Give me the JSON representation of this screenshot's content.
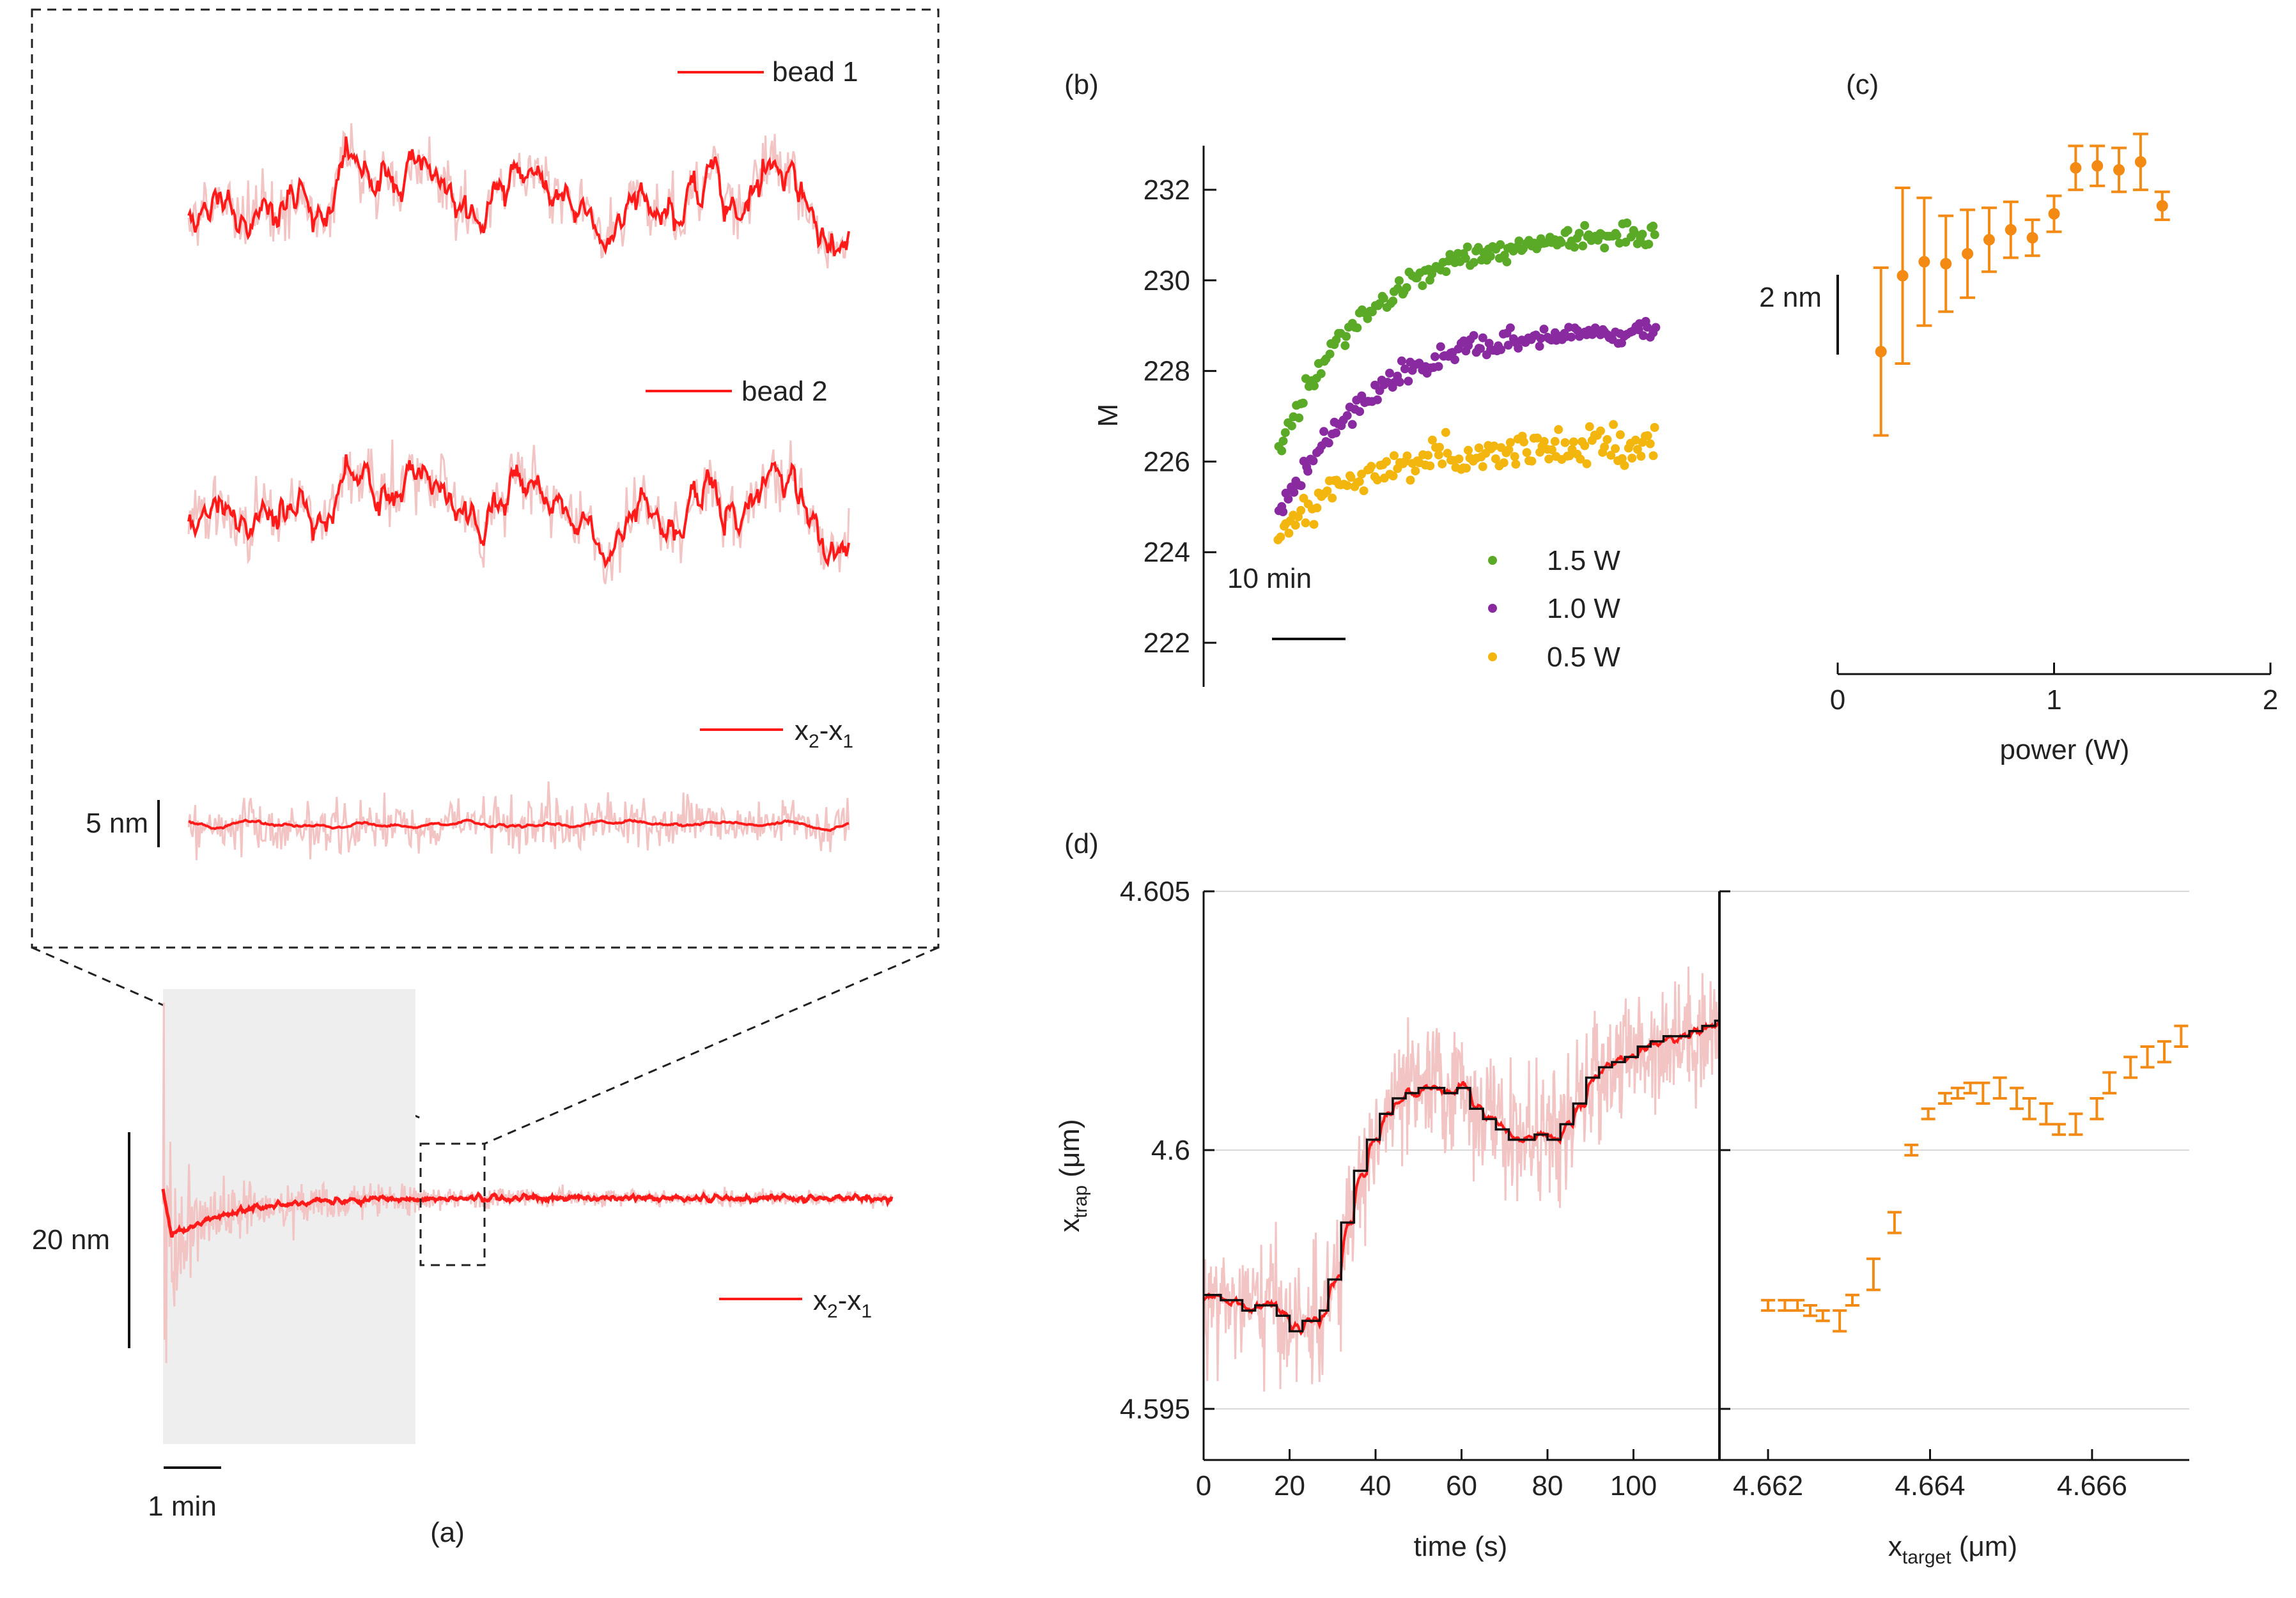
{
  "colors": {
    "trace": "#ff1a1a",
    "trace_raw": "#f2c4c4",
    "green": "#5aaa28",
    "purple": "#8a2aa0",
    "yellow": "#f3b60e",
    "orange": "#f28a14",
    "step": "#111111",
    "shade": "#eeeeee",
    "grid": "#d9d9d9",
    "axis": "#111111"
  },
  "chart_data": [
    {
      "panel": "(a)",
      "type": "line",
      "inset": {
        "traces": [
          {
            "name": "bead 1"
          },
          {
            "name": "bead 2"
          },
          {
            "name": "x_2-x_1",
            "display": [
              "x",
              "2",
              "-x",
              "1"
            ]
          }
        ],
        "scale_bar": "5 nm"
      },
      "main": {
        "series_label": {
          "name": "x_2-x_1",
          "display": [
            "x",
            "2",
            "-x",
            "1"
          ]
        },
        "y_scale_bar": "20 nm",
        "x_scale_bar": "1 min",
        "highlighted_region": "transient"
      }
    },
    {
      "panel": "(b)",
      "type": "scatter",
      "ylabel": "M",
      "ylim": [
        221,
        233
      ],
      "yticks": [
        "222",
        "224",
        "226",
        "228",
        "230",
        "232"
      ],
      "time_scale_bar": "10 min",
      "series": [
        {
          "name": "1.5 W",
          "start": 226.3,
          "end": 231.0,
          "noise": 0.28,
          "color_key": "green"
        },
        {
          "name": "1.0 W",
          "start": 224.8,
          "end": 228.9,
          "noise": 0.25,
          "color_key": "purple"
        },
        {
          "name": "0.5 W",
          "start": 224.3,
          "end": 226.4,
          "noise": 0.42,
          "color_key": "yellow"
        }
      ]
    },
    {
      "panel": "(c)",
      "type": "scatter",
      "xlabel": "power (W)",
      "xlim": [
        0,
        2
      ],
      "xticks": [
        "0",
        "1",
        "2"
      ],
      "y_scale_bar": "2 nm",
      "x": [
        0.2,
        0.3,
        0.4,
        0.5,
        0.6,
        0.7,
        0.8,
        0.9,
        1.0,
        1.1,
        1.2,
        1.3,
        1.4,
        1.5
      ],
      "y": [
        -4.9,
        -3.0,
        -2.65,
        -2.7,
        -2.45,
        -2.1,
        -1.85,
        -2.05,
        -1.45,
        -0.3,
        -0.25,
        -0.35,
        -0.15,
        -1.25
      ],
      "yerr": [
        2.1,
        2.2,
        1.6,
        1.2,
        1.1,
        0.8,
        0.7,
        0.45,
        0.45,
        0.55,
        0.5,
        0.55,
        0.7,
        0.35
      ]
    },
    {
      "panel": "(d)",
      "type": "line",
      "ylabel": {
        "main": "x",
        "sub": "trap",
        "unit": " (μm)"
      },
      "ylim": [
        4.5945,
        4.605
      ],
      "yticks": [
        "4.595",
        "4.6",
        "4.605"
      ],
      "left": {
        "xlabel": "time (s)",
        "xlim": [
          0,
          120
        ],
        "xticks": [
          "0",
          "20",
          "40",
          "60",
          "80",
          "100"
        ],
        "steps": {
          "t": [
            0,
            4,
            9,
            12,
            17,
            20,
            23,
            27,
            29,
            32,
            35,
            38,
            41,
            44,
            47,
            50,
            53,
            56,
            59,
            62,
            65,
            68,
            71,
            74,
            77,
            80,
            83,
            86,
            89,
            92,
            95,
            98,
            101,
            104,
            107,
            110,
            113,
            116,
            119
          ],
          "y": [
            4.5972,
            4.5971,
            4.5969,
            4.597,
            4.5968,
            4.5965,
            4.5967,
            4.5969,
            4.5975,
            4.5986,
            4.5996,
            4.6002,
            4.6007,
            4.601,
            4.6011,
            4.6012,
            4.6012,
            4.6011,
            4.6012,
            4.6008,
            4.6006,
            4.6004,
            4.6002,
            4.6002,
            4.6003,
            4.6002,
            4.6005,
            4.6009,
            4.6014,
            4.6016,
            4.6017,
            4.6018,
            4.602,
            4.6021,
            4.6022,
            4.6022,
            4.6023,
            4.6024,
            4.6025
          ]
        }
      },
      "right": {
        "xlabel": {
          "main": "x",
          "sub": "target",
          "unit": " (μm)"
        },
        "xlim": [
          4.6614,
          4.6672
        ],
        "xticks": [
          "4.662",
          "4.664",
          "4.666"
        ],
        "x": [
          4.662,
          4.6624,
          4.6627,
          4.663,
          4.6633,
          4.6637,
          4.664,
          4.6645,
          4.665,
          4.6654,
          4.6658,
          4.6662,
          4.6665,
          4.6668,
          4.6671,
          4.6675,
          4.6679,
          4.6682,
          4.6686,
          4.6689,
          4.6693,
          4.6698,
          4.6701,
          4.6706,
          4.671,
          4.6714,
          4.6718
        ],
        "x_scaled_note": "",
        "y": [
          4.597,
          4.597,
          4.597,
          4.5969,
          4.5968,
          4.5967,
          4.5971,
          4.5976,
          4.5986,
          4.6,
          4.6007,
          4.601,
          4.6011,
          4.6012,
          4.6011,
          4.6012,
          4.601,
          4.6008,
          4.6007,
          4.6004,
          4.6005,
          4.6008,
          4.6013,
          4.6016,
          4.6018,
          4.6019,
          4.6022
        ],
        "yerr": [
          0.0001,
          0.0001,
          0.0001,
          0.0001,
          0.0001,
          0.0002,
          0.0001,
          0.0003,
          0.0002,
          0.0001,
          0.0001,
          0.0001,
          0.0001,
          0.0001,
          0.0002,
          0.0002,
          0.0002,
          0.0002,
          0.0002,
          0.0001,
          0.0002,
          0.0002,
          0.0002,
          0.0002,
          0.0002,
          0.0002,
          0.0002
        ]
      }
    }
  ]
}
